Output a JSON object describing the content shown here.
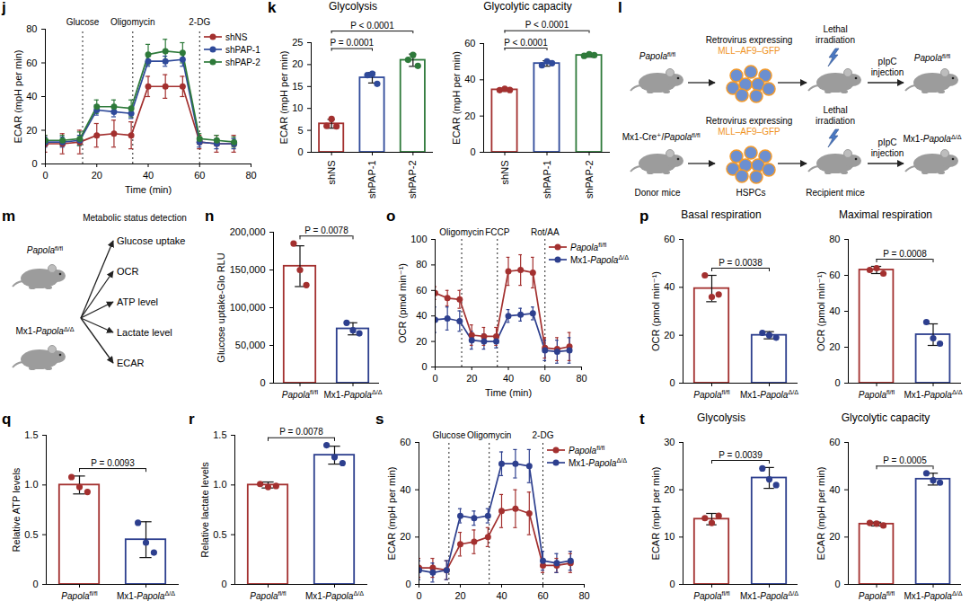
{
  "chart_data": [
    {
      "panel": "j",
      "type": "line",
      "x_label": "Time (min)",
      "y_label": "ECAR (mpH per min)",
      "x": [
        0,
        6.7,
        13.4,
        20,
        26.7,
        33.4,
        40,
        46.7,
        53.4,
        60,
        66.7,
        73.4
      ],
      "xlim": [
        0,
        80
      ],
      "xticks": [
        0,
        20,
        40,
        60,
        80
      ],
      "ylim": [
        0,
        80
      ],
      "yticks": [
        0,
        20,
        40,
        60,
        80
      ],
      "treatments": [
        {
          "x": 14.5,
          "label": "Glucose"
        },
        {
          "x": 34,
          "label": "Oligomycin"
        },
        {
          "x": 60,
          "label": "2-DG"
        }
      ],
      "marker": "circle",
      "legend": "top-right",
      "series": [
        {
          "name": "shNS",
          "color": "#a3302f",
          "values": [
            12,
            12,
            13,
            17,
            18,
            17,
            46,
            46,
            46,
            13,
            12,
            12
          ],
          "errors": [
            5,
            6,
            7,
            7,
            8,
            8,
            6,
            7,
            6,
            4,
            5,
            5
          ]
        },
        {
          "name": "shPAP-1",
          "color": "#2f4a9a",
          "values": [
            13,
            13,
            14,
            32,
            31,
            30,
            61,
            61,
            62,
            13,
            12,
            12
          ],
          "errors": [
            3,
            3,
            3,
            3,
            3,
            3,
            3,
            3,
            4,
            3,
            3,
            3
          ]
        },
        {
          "name": "shPAP-2",
          "color": "#2e7a3a",
          "values": [
            14,
            14,
            15,
            34,
            34,
            33,
            65,
            67,
            66,
            15,
            14,
            13
          ],
          "errors": [
            3,
            3,
            4,
            4,
            4,
            5,
            6,
            7,
            6,
            3,
            3,
            3
          ]
        }
      ]
    },
    {
      "panel": "k",
      "type": "bar",
      "title": "Glycolysis",
      "y_label": "ECAR (mpH per min)",
      "categories": [
        "shNS",
        "shPAP-1",
        "shPAP-2"
      ],
      "values": [
        6.5,
        17,
        21
      ],
      "errors": [
        1,
        1.2,
        1.4
      ],
      "points": [
        [
          6,
          7.6,
          5.9
        ],
        [
          17.6,
          17.9,
          15.6
        ],
        [
          21.1,
          22.2,
          19.7
        ]
      ],
      "colors": [
        "#a3302f",
        "#2f4a9a",
        "#2e7a3a"
      ],
      "ylim": [
        0,
        25
      ],
      "yticks": [
        0,
        5,
        10,
        15,
        20,
        25
      ],
      "comparisons": [
        {
          "pair": [
            "shNS",
            "shPAP-1"
          ],
          "label": "P = 0.0001"
        },
        {
          "pair": [
            "shNS",
            "shPAP-2"
          ],
          "label": "P < 0.0001"
        }
      ]
    },
    {
      "type": "bar",
      "title": "Glycolytic capacity",
      "y_label": "ECAR (mpH per min)",
      "categories": [
        "shNS",
        "shPAP-1",
        "shPAP-2"
      ],
      "values": [
        34.5,
        49,
        53.5
      ],
      "errors": [
        0.8,
        1.5,
        1
      ],
      "points": [
        [
          34.3,
          35,
          34.4
        ],
        [
          48,
          50.2,
          49.2
        ],
        [
          53.2,
          54.1,
          53.6
        ]
      ],
      "colors": [
        "#a3302f",
        "#2f4a9a",
        "#2e7a3a"
      ],
      "ylim": [
        0,
        60
      ],
      "yticks": [
        0,
        20,
        40,
        60
      ],
      "comparisons": [
        {
          "pair": [
            "shNS",
            "shPAP-1"
          ],
          "label": "P < 0.0001"
        },
        {
          "pair": [
            "shNS",
            "shPAP-2"
          ],
          "label": "P < 0.0001"
        }
      ]
    },
    {
      "panel": "n",
      "type": "bar",
      "y_label": "Glucose uptake-Glo RLU",
      "categories": [
        "Papolafl/fl",
        "Mx1-PapolaΔ/Δ"
      ],
      "values": [
        155000,
        72000
      ],
      "errors": [
        27000,
        8000
      ],
      "points": [
        [
          185000,
          150000,
          130000
        ],
        [
          80000,
          70000,
          66000
        ]
      ],
      "colors": [
        "#a3302f",
        "#2d3f8e"
      ],
      "ylim": [
        0,
        200000
      ],
      "yticks": [
        0,
        {
          "value": 50000,
          "label": "50,000"
        },
        {
          "value": 100000,
          "label": "100,000"
        },
        {
          "value": 150000,
          "label": "150,000"
        },
        {
          "value": 200000,
          "label": "200,000"
        }
      ],
      "comparisons": [
        {
          "pair": [
            "Papolafl/fl",
            "Mx1-PapolaΔ/Δ"
          ],
          "label": "P = 0.0078"
        }
      ]
    },
    {
      "panel": "o",
      "type": "line",
      "x_label": "Time (min)",
      "y_label": "OCR (pmol min⁻¹)",
      "x": [
        0,
        6.7,
        13.4,
        20,
        26.7,
        33.4,
        40,
        46.7,
        53.4,
        60,
        66.7,
        73.4
      ],
      "xlim": [
        0,
        80
      ],
      "xticks": [
        0,
        20,
        40,
        60,
        80
      ],
      "ylim": [
        0,
        100
      ],
      "yticks": [
        0,
        20,
        40,
        60,
        80,
        100
      ],
      "treatments": [
        {
          "x": 14.5,
          "label": "Oligomycin"
        },
        {
          "x": 34,
          "label": "FCCP"
        },
        {
          "x": 60,
          "label": "Rot/AA"
        }
      ],
      "marker": "circle",
      "legend": "top-right",
      "series": [
        {
          "name": "Papolafl/fl",
          "color": "#a3302f",
          "values": [
            58,
            54,
            53,
            25,
            24,
            24,
            75,
            76,
            74,
            15,
            14,
            16
          ],
          "errors": [
            5,
            6,
            7,
            8,
            7,
            7,
            11,
            12,
            12,
            8,
            9,
            11
          ]
        },
        {
          "name": "Mx1-PapolaΔ/Δ",
          "color": "#2d3f8e",
          "values": [
            37,
            38,
            36,
            21,
            20,
            20,
            40,
            41,
            42,
            13,
            12,
            13
          ],
          "errors": [
            10,
            9,
            8,
            7,
            6,
            5,
            5,
            5,
            5,
            8,
            9,
            10
          ]
        }
      ]
    },
    {
      "panel": "p",
      "type": "bar",
      "title": "Basal respiration",
      "y_label": "OCR (pmol min⁻¹)",
      "categories": [
        "Papolafl/fl",
        "Mx1-PapolaΔ/Δ"
      ],
      "values": [
        39.5,
        20
      ],
      "errors": [
        5.5,
        1.5
      ],
      "points": [
        [
          45,
          36,
          37
        ],
        [
          21,
          20,
          19
        ]
      ],
      "colors": [
        "#a3302f",
        "#2d3f8e"
      ],
      "ylim": [
        0,
        60
      ],
      "yticks": [
        0,
        20,
        40,
        60
      ],
      "comparisons": [
        {
          "pair": [
            "Papolafl/fl",
            "Mx1-PapolaΔ/Δ"
          ],
          "label": "P = 0.0038"
        }
      ]
    },
    {
      "type": "bar",
      "title": "Maximal respiration",
      "y_label": "OCR (pmol min⁻¹)",
      "categories": [
        "Papolafl/fl",
        "Mx1-PapolaΔ/Δ"
      ],
      "values": [
        63,
        27
      ],
      "errors": [
        2,
        6
      ],
      "points": [
        [
          63,
          64,
          61
        ],
        [
          34,
          25,
          22
        ]
      ],
      "colors": [
        "#a3302f",
        "#2d3f8e"
      ],
      "ylim": [
        0,
        80
      ],
      "yticks": [
        0,
        20,
        40,
        60,
        80
      ],
      "comparisons": [
        {
          "pair": [
            "Papolafl/fl",
            "Mx1-PapolaΔ/Δ"
          ],
          "label": "P = 0.0008"
        }
      ]
    },
    {
      "panel": "q",
      "type": "bar",
      "y_label": "Relative ATP levels",
      "categories": [
        "Papolafl/fl",
        "Mx1-PapolaΔ/Δ"
      ],
      "values": [
        1.0,
        0.45
      ],
      "errors": [
        0.09,
        0.18
      ],
      "points": [
        [
          1.08,
          0.98,
          0.93
        ],
        [
          0.62,
          0.42,
          0.32
        ]
      ],
      "colors": [
        "#a3302f",
        "#2d3f8e"
      ],
      "ylim": [
        0,
        1.5
      ],
      "yticks": [
        0,
        0.5,
        {
          "value": 1,
          "label": "1.0"
        },
        1.5
      ],
      "comparisons": [
        {
          "pair": [
            "Papolafl/fl",
            "Mx1-PapolaΔ/Δ"
          ],
          "label": "P = 0.0093"
        }
      ]
    },
    {
      "panel": "r",
      "type": "bar",
      "y_label": "Relative lactate levels",
      "categories": [
        "Papolafl/fl",
        "Mx1-PapolaΔ/Δ"
      ],
      "values": [
        1.0,
        1.3
      ],
      "errors": [
        0.03,
        0.09
      ],
      "points": [
        [
          1.01,
          0.98,
          0.99
        ],
        [
          1.4,
          1.28,
          1.22
        ]
      ],
      "colors": [
        "#a3302f",
        "#2d3f8e"
      ],
      "ylim": [
        0,
        1.5
      ],
      "yticks": [
        0,
        0.5,
        {
          "value": 1,
          "label": "1.0"
        },
        1.5
      ],
      "comparisons": [
        {
          "pair": [
            "Papolafl/fl",
            "Mx1-PapolaΔ/Δ"
          ],
          "label": "P = 0.0078"
        }
      ]
    },
    {
      "panel": "s",
      "type": "line",
      "y_label": "ECAR (mpH per min)",
      "x": [
        0,
        6.7,
        13.4,
        20,
        26.7,
        33.4,
        40,
        46.7,
        53.4,
        60,
        66.7,
        73.4
      ],
      "xlim": [
        0,
        80
      ],
      "xticks": [
        0,
        20,
        40,
        60,
        80
      ],
      "ylim": [
        0,
        60
      ],
      "yticks": [
        0,
        20,
        40,
        60
      ],
      "treatments": [
        {
          "x": 14.5,
          "label": "Glucose"
        },
        {
          "x": 34,
          "label": "Oligomycin"
        },
        {
          "x": 60,
          "label": "2-DG"
        }
      ],
      "marker": "circle",
      "legend": "top-right",
      "series": [
        {
          "name": "Papolafl/fl",
          "color": "#a3302f",
          "values": [
            7,
            7,
            6,
            17,
            18,
            20,
            31,
            32,
            30,
            8,
            8,
            9
          ],
          "errors": [
            4,
            4,
            4,
            5,
            5,
            4,
            7,
            8,
            9,
            3,
            3,
            4
          ]
        },
        {
          "name": "Mx1-PapolaΔ/Δ",
          "color": "#2d3f8e",
          "values": [
            6,
            5,
            6,
            29,
            28,
            29,
            51,
            51,
            50,
            10,
            9,
            10
          ],
          "errors": [
            4,
            4,
            4,
            3,
            3,
            3,
            5,
            6,
            7,
            4,
            4,
            4
          ]
        }
      ]
    },
    {
      "panel": "t",
      "type": "bar",
      "title": "Glycolysis",
      "y_label": "ECAR (mpH per min)",
      "categories": [
        "Papolafl/fl",
        "Mx1-PapolaΔ/Δ"
      ],
      "values": [
        13.8,
        22.5
      ],
      "errors": [
        1.2,
        2.2
      ],
      "points": [
        [
          14,
          13,
          14.5
        ],
        [
          24.5,
          22.2,
          21
        ]
      ],
      "colors": [
        "#a3302f",
        "#2d3f8e"
      ],
      "ylim": [
        0,
        30
      ],
      "yticks": [
        0,
        10,
        20,
        30
      ],
      "comparisons": [
        {
          "pair": [
            "Papolafl/fl",
            "Mx1-PapolaΔ/Δ"
          ],
          "label": "P = 0.0039"
        }
      ]
    },
    {
      "type": "bar",
      "title": "Glycolytic capacity",
      "y_label": "ECAR (mpH per min)",
      "categories": [
        "Papolafl/fl",
        "Mx1-PapolaΔ/Δ"
      ],
      "values": [
        25.5,
        44.5
      ],
      "errors": [
        0.8,
        2.5
      ],
      "points": [
        [
          26,
          25.7,
          24.9
        ],
        [
          47,
          44,
          43
        ]
      ],
      "colors": [
        "#a3302f",
        "#2d3f8e"
      ],
      "ylim": [
        0,
        60
      ],
      "yticks": [
        0,
        20,
        40,
        60
      ],
      "comparisons": [
        {
          "pair": [
            "Papolafl/fl",
            "Mx1-PapolaΔ/Δ"
          ],
          "label": "P = 0.0005"
        }
      ]
    }
  ],
  "diagrams": [
    {
      "panel": "l",
      "rows": [
        {
          "donor": "Papolafl/fl",
          "vector": "Retrovirus expressing",
          "construct": "MLL–AF9–GFP",
          "treatment": "Lethal irradiation",
          "injection": "pIpC injection",
          "recipient": "Papolafl/fl"
        },
        {
          "donor": "Mx1-Cre⁺/Papolafl/fl",
          "vector": "Retrovirus expressing",
          "construct": "MLL–AF9–GFP",
          "treatment": "Lethal irradiation",
          "injection": "pIpC injection",
          "recipient": "Mx1-PapolaΔ/Δ"
        }
      ],
      "captions": [
        "Donor mice",
        "HSPCs",
        "Recipient mice"
      ]
    },
    {
      "panel": "m",
      "title": "Metabolic status detection",
      "mice": [
        "Papolafl/fl",
        "Mx1-PapolaΔ/Δ"
      ],
      "readouts": [
        "Glucose uptake",
        "OCR",
        "ATP level",
        "Lactate level",
        "ECAR"
      ]
    }
  ]
}
